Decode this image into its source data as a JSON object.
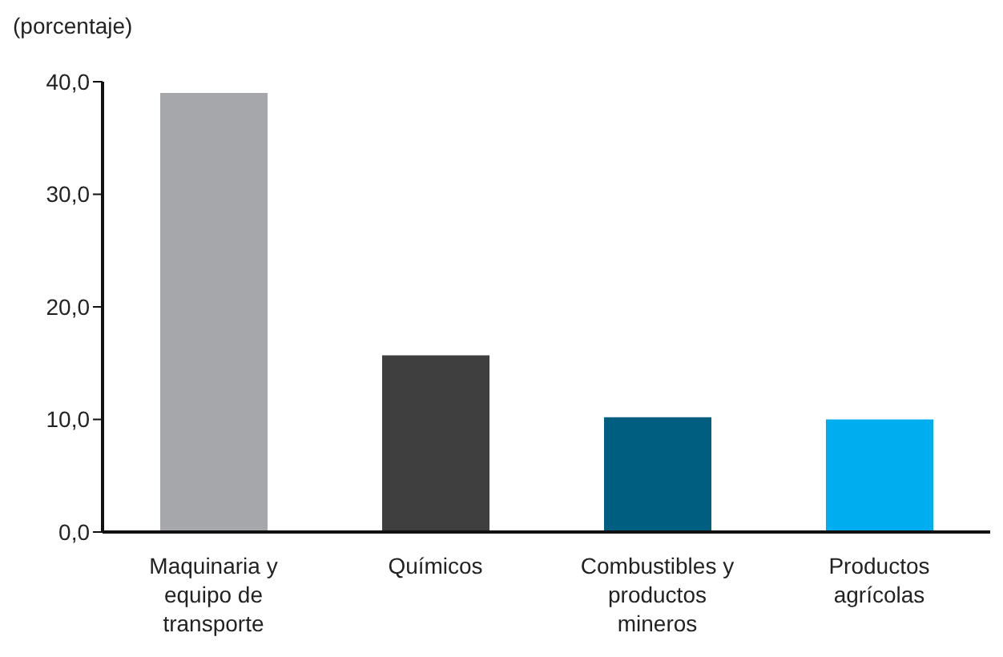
{
  "chart_data": {
    "type": "bar",
    "ylabel": "(porcentaje)",
    "categories": [
      "Maquinaria y equipo de transporte",
      "Químicos",
      "Combustibles y productos mineros",
      "Productos agrícolas"
    ],
    "values": [
      39.0,
      15.7,
      10.2,
      10.0
    ],
    "colors": [
      "#a6a7aa",
      "#3f3f3f",
      "#005e80",
      "#00aeef"
    ],
    "ylim": [
      0,
      40
    ],
    "yticks": [
      {
        "value": 0,
        "label": "0,0"
      },
      {
        "value": 10,
        "label": "10,0"
      },
      {
        "value": 20,
        "label": "20,0"
      },
      {
        "value": 30,
        "label": "30,0"
      },
      {
        "value": 40,
        "label": "40,0"
      }
    ],
    "grid": false,
    "legend": false
  }
}
